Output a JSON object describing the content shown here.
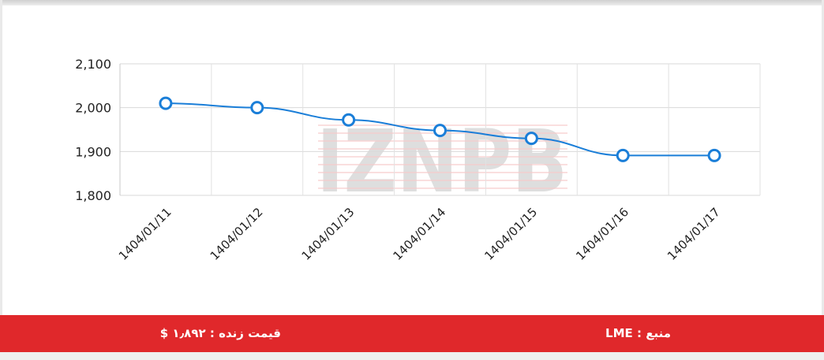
{
  "chart_data": {
    "type": "line",
    "categories": [
      "1404/01/11",
      "1404/01/12",
      "1404/01/13",
      "1404/01/14",
      "1404/01/15",
      "1404/01/16",
      "1404/01/17"
    ],
    "series": [
      {
        "values": [
          2010,
          2000,
          1972,
          1948,
          1930,
          1891,
          1891
        ]
      }
    ],
    "ylim": [
      1800,
      2100
    ],
    "yticks": [
      "1,800",
      "1,900",
      "2,000",
      "2,100"
    ],
    "grid": true,
    "line_color": "#1a7ed8",
    "watermark": "IZNPB"
  },
  "footer": {
    "price_label": "قیمت زنده : ۱٫۸۹۲ $",
    "source_label": "منبع : LME",
    "background": "#e0282b"
  }
}
